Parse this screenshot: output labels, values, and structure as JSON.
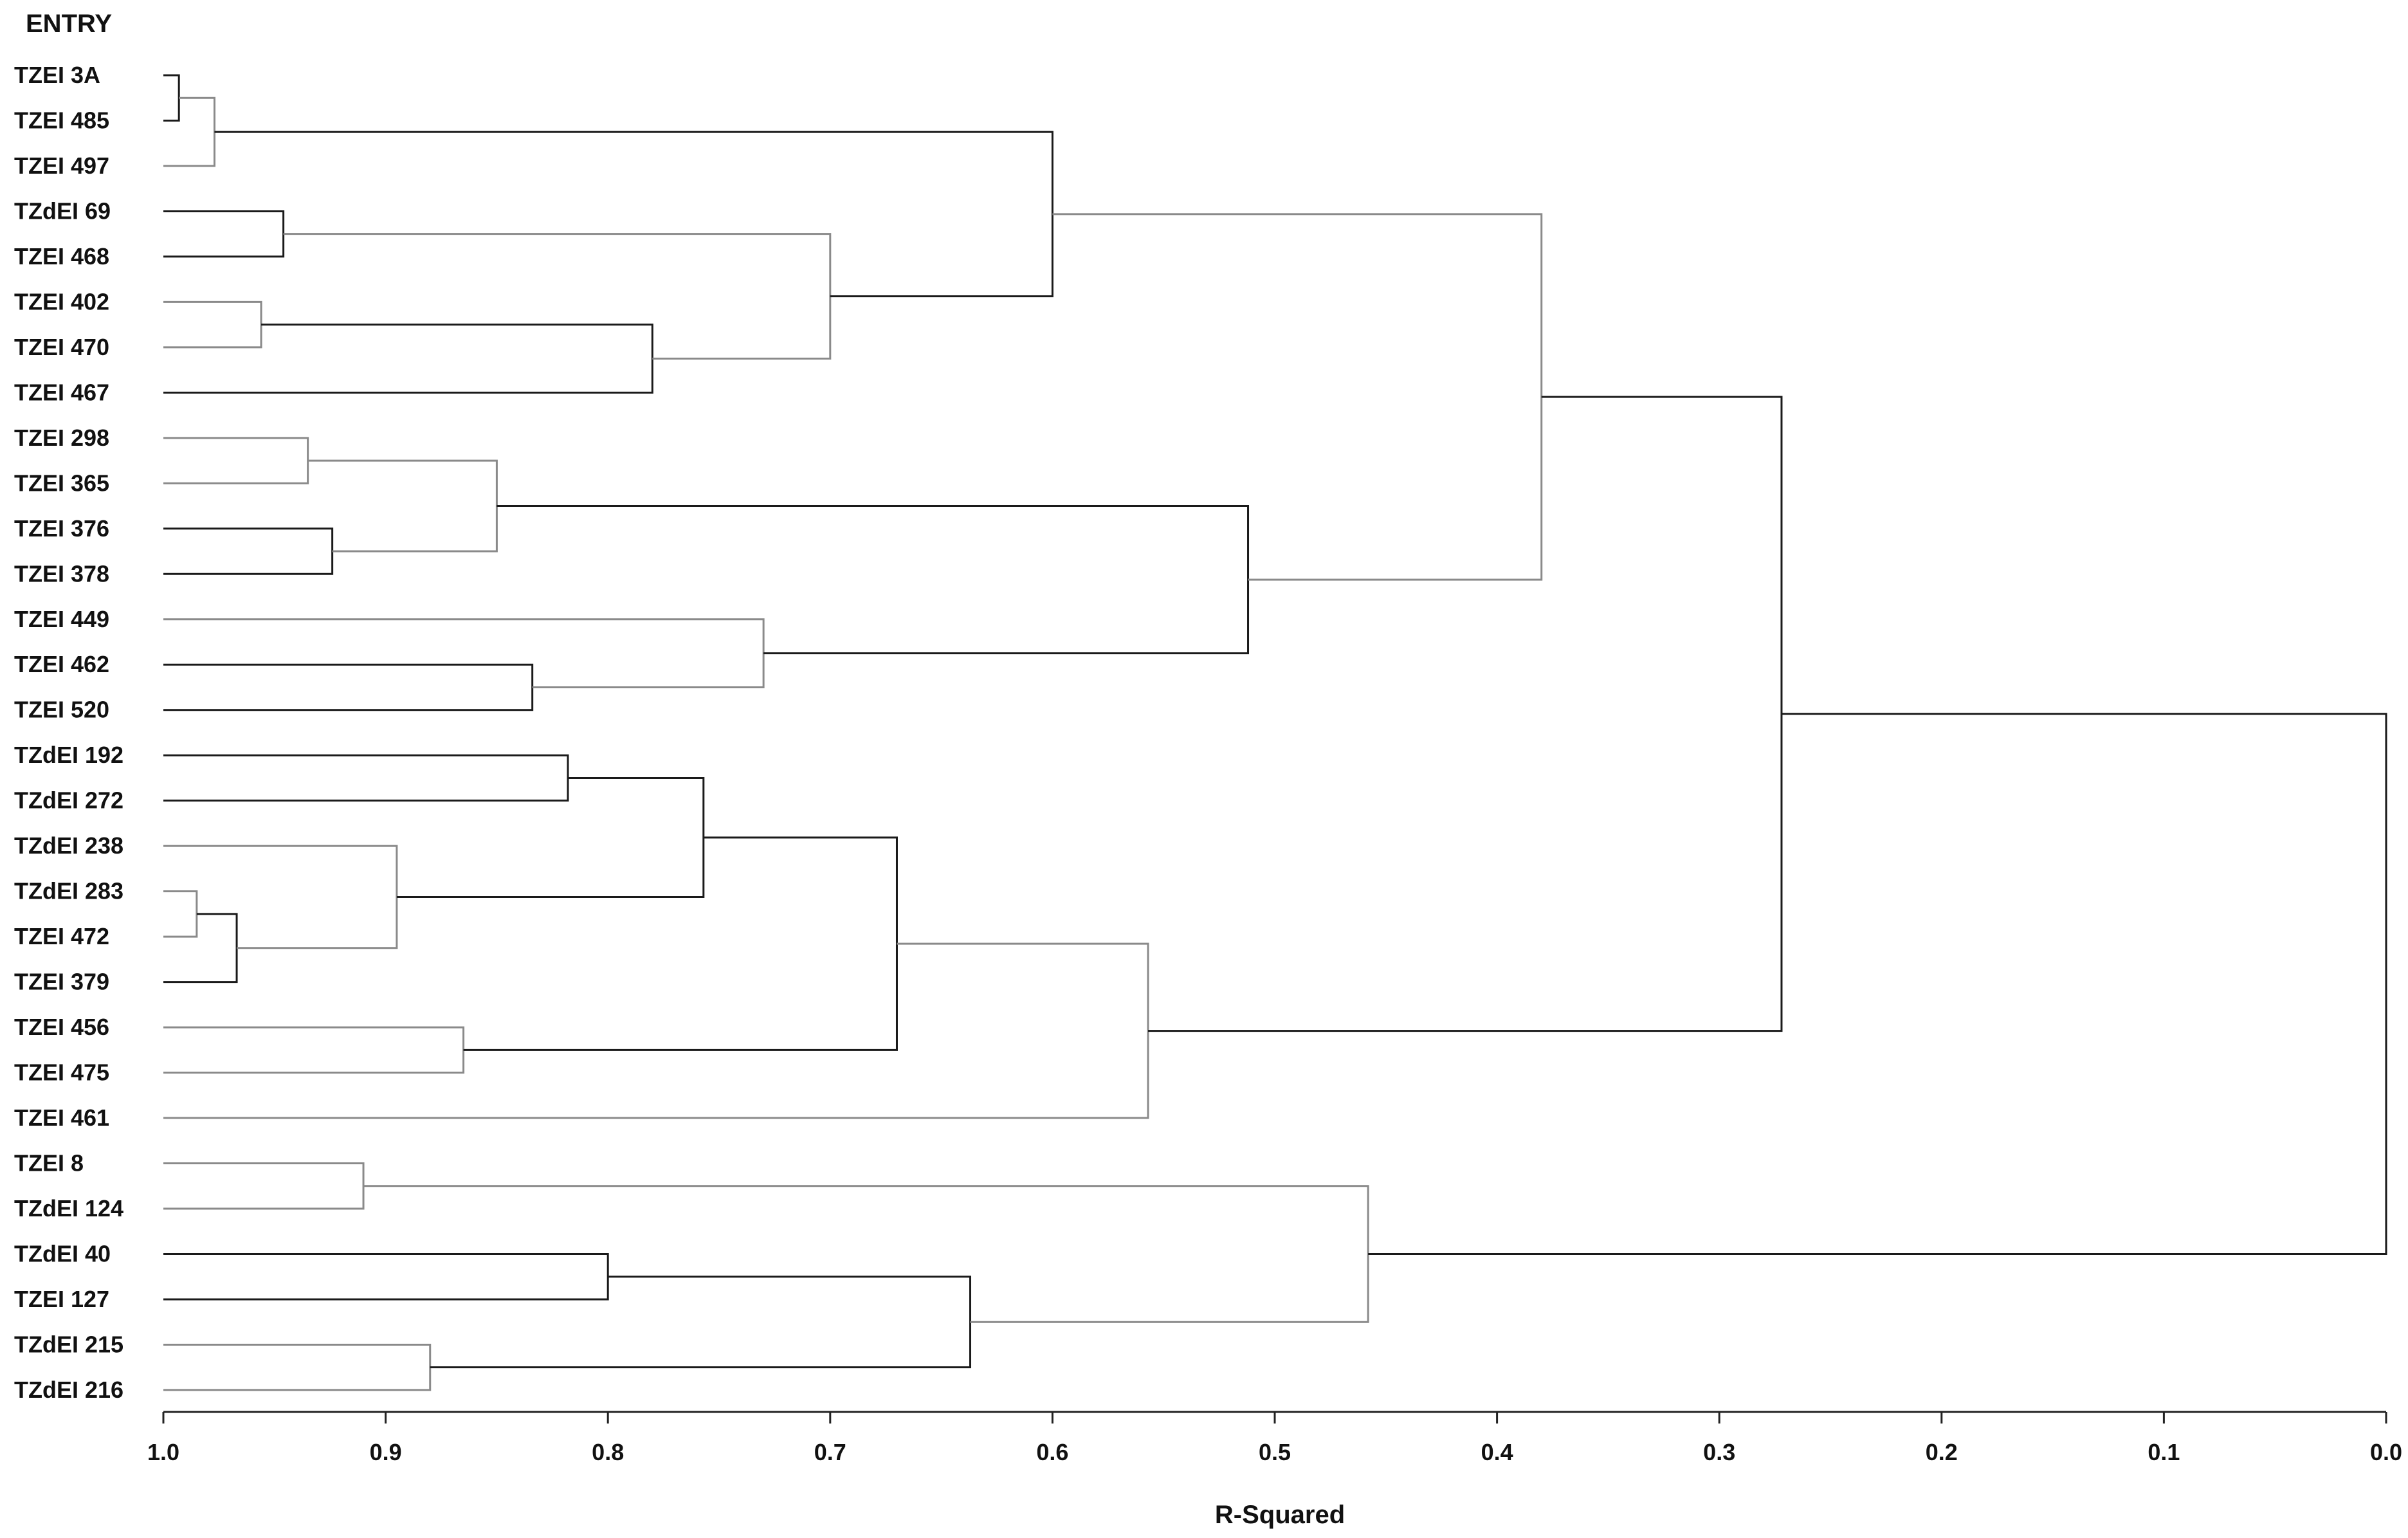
{
  "chart_data": {
    "type": "dendrogram",
    "leaf_header": "ENTRY",
    "xlabel": "R-Squared",
    "xlim": [
      1.0,
      0.0
    ],
    "xticks": [
      "1.0",
      "0.9",
      "0.8",
      "0.7",
      "0.6",
      "0.5",
      "0.4",
      "0.3",
      "0.2",
      "0.1",
      "0.0"
    ],
    "leaves": [
      "TZEI 3A",
      "TZEI 485",
      "TZEI 497",
      "TZdEI 69",
      "TZEI 468",
      "TZEI 402",
      "TZEI 470",
      "TZEI 467",
      "TZEI 298",
      "TZEI 365",
      "TZEI 376",
      "TZEI 378",
      "TZEI 449",
      "TZEI 462",
      "TZEI 520",
      "TZdEI 192",
      "TZdEI 272",
      "TZdEI 238",
      "TZdEI 283",
      "TZEI 472",
      "TZEI 379",
      "TZEI 456",
      "TZEI 475",
      "TZEI 461",
      "TZEI 8",
      "TZdEI 124",
      "TZdEI 40",
      "TZEI 127",
      "TZdEI 215",
      "TZdEI 216"
    ],
    "merges": [
      {
        "id": "c1",
        "a": "L0",
        "b": "L1",
        "height": 0.993
      },
      {
        "id": "c2",
        "a": "c1",
        "b": "L2",
        "height": 0.977
      },
      {
        "id": "c3",
        "a": "L3",
        "b": "L4",
        "height": 0.946
      },
      {
        "id": "c4",
        "a": "L5",
        "b": "L6",
        "height": 0.956
      },
      {
        "id": "c5",
        "a": "c4",
        "b": "L7",
        "height": 0.78
      },
      {
        "id": "c6",
        "a": "c3",
        "b": "c5",
        "height": 0.7
      },
      {
        "id": "c7",
        "a": "c2",
        "b": "c6",
        "height": 0.6
      },
      {
        "id": "c8",
        "a": "L8",
        "b": "L9",
        "height": 0.935
      },
      {
        "id": "c9",
        "a": "L10",
        "b": "L11",
        "height": 0.924
      },
      {
        "id": "c10",
        "a": "c8",
        "b": "c9",
        "height": 0.85
      },
      {
        "id": "c11",
        "a": "L13",
        "b": "L14",
        "height": 0.834
      },
      {
        "id": "c12",
        "a": "L12",
        "b": "c11",
        "height": 0.73
      },
      {
        "id": "c13",
        "a": "c10",
        "b": "c12",
        "height": 0.512
      },
      {
        "id": "c14",
        "a": "c7",
        "b": "c13",
        "height": 0.38
      },
      {
        "id": "c15",
        "a": "L15",
        "b": "L16",
        "height": 0.818
      },
      {
        "id": "c16",
        "a": "L18",
        "b": "L19",
        "height": 0.985
      },
      {
        "id": "c17",
        "a": "c16",
        "b": "L20",
        "height": 0.967
      },
      {
        "id": "c18",
        "a": "L17",
        "b": "c17",
        "height": 0.895
      },
      {
        "id": "c19",
        "a": "c15",
        "b": "c18",
        "height": 0.757
      },
      {
        "id": "c20",
        "a": "L21",
        "b": "L22",
        "height": 0.865
      },
      {
        "id": "c21",
        "a": "c19",
        "b": "c20",
        "height": 0.67
      },
      {
        "id": "c22",
        "a": "c21",
        "b": "L23",
        "height": 0.557
      },
      {
        "id": "c23",
        "a": "c14",
        "b": "c22",
        "height": 0.272
      },
      {
        "id": "c24",
        "a": "L24",
        "b": "L25",
        "height": 0.91
      },
      {
        "id": "c25",
        "a": "L26",
        "b": "L27",
        "height": 0.8
      },
      {
        "id": "c26",
        "a": "L28",
        "b": "L29",
        "height": 0.88
      },
      {
        "id": "c27",
        "a": "c25",
        "b": "c26",
        "height": 0.637
      },
      {
        "id": "c28",
        "a": "c24",
        "b": "c27",
        "height": 0.458
      },
      {
        "id": "c29",
        "a": "c23",
        "b": "c28",
        "height": 0.0
      }
    ],
    "grid": false,
    "legend": "none",
    "colors": {
      "branch_dark": "#1a1a1a",
      "branch_light": "#8a8a8a",
      "text": "#111111"
    }
  }
}
